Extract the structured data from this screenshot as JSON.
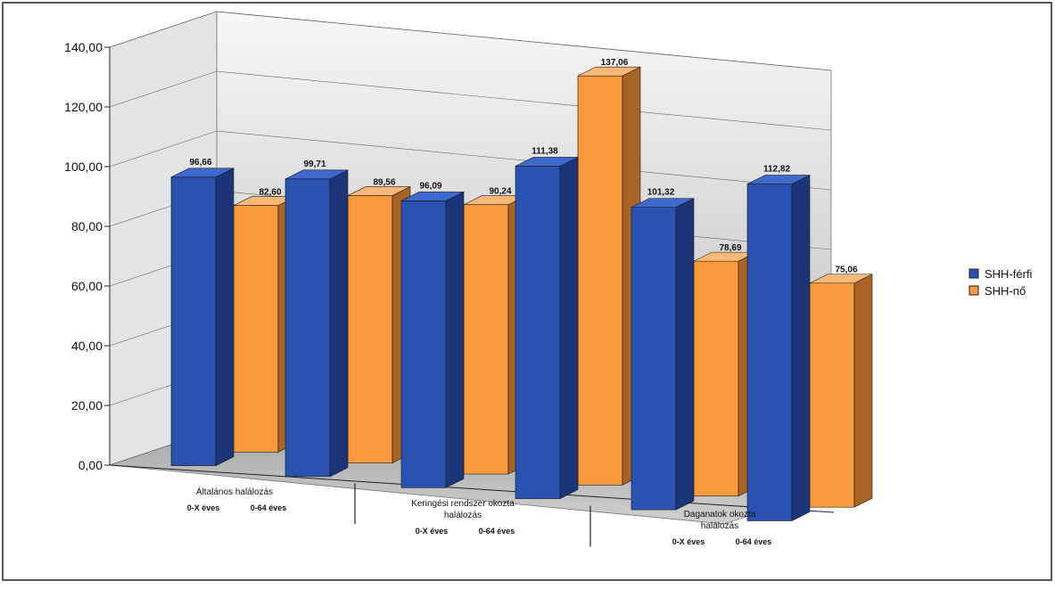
{
  "chart_data": {
    "type": "bar",
    "ylim": [
      0,
      140
    ],
    "y_ticks": [
      "0,00",
      "20,00",
      "40,00",
      "60,00",
      "80,00",
      "100,00",
      "120,00",
      "140,00"
    ],
    "groups": [
      {
        "label_lines": [
          "Általános halálozás"
        ],
        "sub_labels": [
          "0-X éves",
          "0-64 éves"
        ]
      },
      {
        "label_lines": [
          "Keringési rendszer okozta",
          "halálozás"
        ],
        "sub_labels": [
          "0-X éves",
          "0-64 éves"
        ]
      },
      {
        "label_lines": [
          "Daganatok okozta",
          "halálozás"
        ],
        "sub_labels": [
          "0-X éves",
          "0-64 éves"
        ]
      }
    ],
    "categories": [
      "Általános halálozás 0-X éves",
      "Általános halálozás 0-64 éves",
      "Keringési rendszer okozta halálozás 0-X éves",
      "Keringési rendszer okozta halálozás 0-64 éves",
      "Daganatok okozta halálozás 0-X éves",
      "Daganatok okozta halálozás 0-64 éves"
    ],
    "series": [
      {
        "name": "SHH-férfi",
        "color": "#2a52b0",
        "values": [
          96.66,
          99.71,
          96.09,
          111.38,
          101.32,
          112.82
        ],
        "labels": [
          "96,66",
          "99,71",
          "96,09",
          "111,38",
          "101,32",
          "112,82"
        ]
      },
      {
        "name": "SHH-nő",
        "color": "#f99a3c",
        "values": [
          82.6,
          89.56,
          90.24,
          137.06,
          78.69,
          75.06
        ],
        "labels": [
          "82,60",
          "89,56",
          "90,24",
          "137,06",
          "78,69",
          "75,06"
        ]
      }
    ],
    "legend_position": "right",
    "grid": true
  }
}
